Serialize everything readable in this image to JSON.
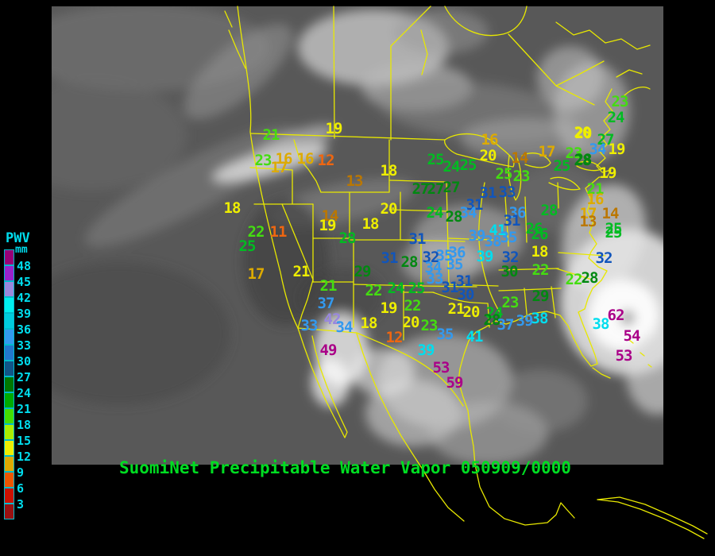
{
  "title": {
    "text": "SuomiNet Precipitable Water Vapor 050909/0000"
  },
  "scale": {
    "heading": "PWV",
    "units": "mm",
    "boxes": [
      {
        "label": "",
        "color": "#990077"
      },
      {
        "label": "48",
        "color": "#9922cc"
      },
      {
        "label": "45",
        "color": "#9988dd"
      },
      {
        "label": "42",
        "color": "#00eeee"
      },
      {
        "label": "39",
        "color": "#00ccdd"
      },
      {
        "label": "36",
        "color": "#3399ee"
      },
      {
        "label": "33",
        "color": "#2277cc"
      },
      {
        "label": "30",
        "color": "#115588"
      },
      {
        "label": "27",
        "color": "#007700"
      },
      {
        "label": "24",
        "color": "#00aa00"
      },
      {
        "label": "21",
        "color": "#44dd00"
      },
      {
        "label": "18",
        "color": "#aaee00"
      },
      {
        "label": "15",
        "color": "#eeee00"
      },
      {
        "label": "12",
        "color": "#ddaa00"
      },
      {
        "label": "9",
        "color": "#ee5500"
      },
      {
        "label": "6",
        "color": "#cc1100"
      },
      {
        "label": "3",
        "color": "#991111"
      }
    ]
  },
  "colors": {
    "background": "#000000",
    "map_outline": "#e8e800",
    "satellite_gray": "#585858",
    "scale_text": "#00ddee",
    "title_green": "#00dd22"
  },
  "palette": {
    "MG": "#aa0088",
    "LV": "#9988dd",
    "CY": "#00ddee",
    "SB": "#3399ee",
    "DB": "#1155bb",
    "DG": "#008811",
    "GR": "#00bb22",
    "BG": "#44dd11",
    "YL": "#eeee00",
    "GD": "#ddaa00",
    "DD": "#bb7700",
    "OR": "#ee6611"
  },
  "stations": [
    [
      21,
      341,
      170,
      "BG"
    ],
    [
      19,
      420,
      162,
      "YL"
    ],
    [
      23,
      331,
      202,
      "BG"
    ],
    [
      16,
      357,
      200,
      "GD"
    ],
    [
      16,
      384,
      200,
      "GD"
    ],
    [
      12,
      410,
      202,
      "OR"
    ],
    [
      17,
      351,
      211,
      "GD"
    ],
    [
      18,
      489,
      215,
      "YL"
    ],
    [
      13,
      446,
      228,
      "DD"
    ],
    [
      18,
      292,
      262,
      "YL"
    ],
    [
      20,
      489,
      263,
      "YL"
    ],
    [
      14,
      415,
      272,
      "DD"
    ],
    [
      19,
      412,
      284,
      "YL"
    ],
    [
      18,
      466,
      282,
      "YL"
    ],
    [
      22,
      322,
      292,
      "BG"
    ],
    [
      11,
      350,
      292,
      "OR"
    ],
    [
      28,
      437,
      300,
      "GR"
    ],
    [
      25,
      311,
      310,
      "GR"
    ],
    [
      17,
      322,
      345,
      "GD"
    ],
    [
      21,
      379,
      342,
      "YL"
    ],
    [
      21,
      413,
      360,
      "BG"
    ],
    [
      37,
      410,
      382,
      "SB"
    ],
    [
      42,
      418,
      402,
      "LV"
    ],
    [
      33,
      389,
      410,
      "SB"
    ],
    [
      34,
      433,
      412,
      "SB"
    ],
    [
      49,
      413,
      441,
      "MG"
    ],
    [
      16,
      616,
      176,
      "GD"
    ],
    [
      20,
      733,
      167,
      "YL"
    ],
    [
      20,
      614,
      196,
      "YL"
    ],
    [
      14,
      654,
      199,
      "DD"
    ],
    [
      17,
      688,
      191,
      "GD"
    ],
    [
      23,
      722,
      193,
      "BG"
    ],
    [
      25,
      548,
      201,
      "GR"
    ],
    [
      24,
      568,
      210,
      "GR"
    ],
    [
      25,
      589,
      208,
      "GR"
    ],
    [
      28,
      733,
      202,
      "DG"
    ],
    [
      25,
      707,
      209,
      "GR"
    ],
    [
      25,
      634,
      219,
      "BG"
    ],
    [
      23,
      656,
      222,
      "BG"
    ],
    [
      27,
      529,
      238,
      "DG"
    ],
    [
      27,
      548,
      238,
      "DG"
    ],
    [
      27,
      568,
      236,
      "DG"
    ],
    [
      31,
      614,
      243,
      "DB"
    ],
    [
      33,
      638,
      242,
      "DB"
    ],
    [
      31,
      597,
      258,
      "DB"
    ],
    [
      34,
      589,
      268,
      "SB"
    ],
    [
      24,
      547,
      268,
      "GR"
    ],
    [
      28,
      571,
      273,
      "DG"
    ],
    [
      36,
      651,
      268,
      "SB"
    ],
    [
      31,
      644,
      278,
      "DB"
    ],
    [
      28,
      691,
      265,
      "GR"
    ],
    [
      41,
      626,
      290,
      "CY"
    ],
    [
      39,
      600,
      297,
      "SB"
    ],
    [
      38,
      620,
      304,
      "SB"
    ],
    [
      35,
      640,
      299,
      "SB"
    ],
    [
      26,
      679,
      295,
      "GR"
    ],
    [
      23,
      780,
      128,
      "BG"
    ],
    [
      24,
      775,
      148,
      "GR"
    ],
    [
      27,
      762,
      176,
      "GR"
    ],
    [
      34,
      752,
      188,
      "SB"
    ],
    [
      19,
      776,
      188,
      "YL"
    ],
    [
      20,
      734,
      168,
      "YL"
    ],
    [
      28,
      734,
      201,
      "DG"
    ],
    [
      19,
      765,
      218,
      "YL"
    ],
    [
      21,
      749,
      238,
      "BG"
    ],
    [
      16,
      749,
      251,
      "GD"
    ],
    [
      17,
      740,
      269,
      "GD"
    ],
    [
      14,
      768,
      269,
      "DD"
    ],
    [
      13,
      740,
      279,
      "DD"
    ],
    [
      25,
      772,
      288,
      "GR"
    ],
    [
      31,
      525,
      301,
      "DB"
    ],
    [
      31,
      490,
      325,
      "DB"
    ],
    [
      28,
      515,
      330,
      "DG"
    ],
    [
      32,
      542,
      324,
      "DB"
    ],
    [
      34,
      545,
      337,
      "SB"
    ],
    [
      35,
      559,
      322,
      "SB"
    ],
    [
      36,
      575,
      318,
      "SB"
    ],
    [
      35,
      572,
      333,
      "SB"
    ],
    [
      39,
      610,
      323,
      "CY"
    ],
    [
      32,
      642,
      324,
      "DB"
    ],
    [
      30,
      641,
      342,
      "DG"
    ],
    [
      33,
      547,
      351,
      "SB"
    ],
    [
      31,
      584,
      354,
      "DB"
    ],
    [
      31,
      566,
      362,
      "DB"
    ],
    [
      30,
      586,
      371,
      "DB"
    ],
    [
      18,
      679,
      317,
      "YL"
    ],
    [
      22,
      680,
      340,
      "BG"
    ],
    [
      29,
      456,
      342,
      "DG"
    ],
    [
      22,
      470,
      366,
      "BG"
    ],
    [
      24,
      498,
      363,
      "GR"
    ],
    [
      25,
      524,
      363,
      "GR"
    ],
    [
      19,
      489,
      388,
      "YL"
    ],
    [
      22,
      519,
      385,
      "BG"
    ],
    [
      21,
      574,
      389,
      "YL"
    ],
    [
      20,
      593,
      393,
      "YL"
    ],
    [
      18,
      464,
      407,
      "YL"
    ],
    [
      20,
      517,
      406,
      "YL"
    ],
    [
      23,
      540,
      410,
      "BG"
    ],
    [
      12,
      496,
      425,
      "OR"
    ],
    [
      35,
      560,
      421,
      "SB"
    ],
    [
      41,
      597,
      424,
      "CY"
    ],
    [
      39,
      536,
      441,
      "CY"
    ],
    [
      53,
      555,
      463,
      "MG"
    ],
    [
      59,
      572,
      482,
      "MG"
    ],
    [
      23,
      642,
      381,
      "BG"
    ],
    [
      24,
      622,
      394,
      "GR"
    ],
    [
      28,
      619,
      403,
      "DG"
    ],
    [
      37,
      636,
      409,
      "SB"
    ],
    [
      39,
      660,
      404,
      "SB"
    ],
    [
      38,
      679,
      401,
      "CY"
    ],
    [
      29,
      680,
      373,
      "DG"
    ],
    [
      26,
      672,
      288,
      "GR"
    ],
    [
      22,
      722,
      352,
      "BG"
    ],
    [
      28,
      742,
      350,
      "DG"
    ],
    [
      32,
      760,
      325,
      "DB"
    ],
    [
      25,
      772,
      293,
      "GR"
    ],
    [
      62,
      775,
      397,
      "MG"
    ],
    [
      38,
      756,
      408,
      "CY"
    ],
    [
      54,
      795,
      423,
      "MG"
    ],
    [
      53,
      785,
      448,
      "MG"
    ]
  ]
}
